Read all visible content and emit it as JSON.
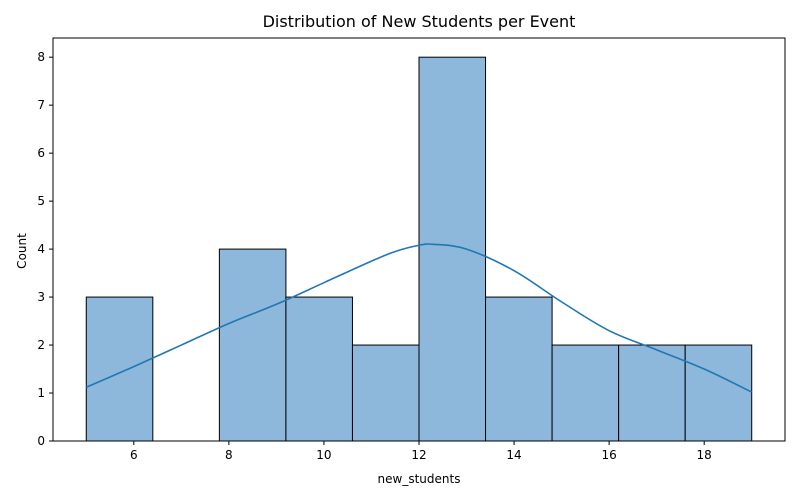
{
  "chart_data": {
    "type": "bar",
    "title": "Distribution of New Students per Event",
    "xlabel": "new_students",
    "ylabel": "Count",
    "xlim": [
      4.3,
      19.7
    ],
    "ylim": [
      0,
      8.4
    ],
    "x_ticks": [
      6,
      8,
      10,
      12,
      14,
      16,
      18
    ],
    "y_ticks": [
      0,
      1,
      2,
      3,
      4,
      5,
      6,
      7,
      8
    ],
    "bins": [
      {
        "x0": 5.0,
        "x1": 6.4,
        "count": 3
      },
      {
        "x0": 6.4,
        "x1": 7.8,
        "count": 0
      },
      {
        "x0": 7.8,
        "x1": 9.2,
        "count": 4
      },
      {
        "x0": 9.2,
        "x1": 10.6,
        "count": 3
      },
      {
        "x0": 10.6,
        "x1": 12.0,
        "count": 2
      },
      {
        "x0": 12.0,
        "x1": 13.4,
        "count": 8
      },
      {
        "x0": 13.4,
        "x1": 14.8,
        "count": 3
      },
      {
        "x0": 14.8,
        "x1": 16.2,
        "count": 2
      },
      {
        "x0": 16.2,
        "x1": 17.6,
        "count": 2
      },
      {
        "x0": 17.6,
        "x1": 19.0,
        "count": 2
      }
    ],
    "kde": {
      "x": [
        5.0,
        6.0,
        7.0,
        8.0,
        9.0,
        10.0,
        11.0,
        11.5,
        12.0,
        12.3,
        13.0,
        14.0,
        15.0,
        16.0,
        17.0,
        18.0,
        19.0
      ],
      "y": [
        1.12,
        1.55,
        2.0,
        2.45,
        2.85,
        3.3,
        3.75,
        3.95,
        4.08,
        4.1,
        4.0,
        3.55,
        2.9,
        2.3,
        1.9,
        1.5,
        1.02
      ]
    },
    "grid": false,
    "colors": {
      "bar_fill": "#8db8db",
      "bar_edge": "#000000",
      "kde_line": "#1f77b4"
    }
  }
}
